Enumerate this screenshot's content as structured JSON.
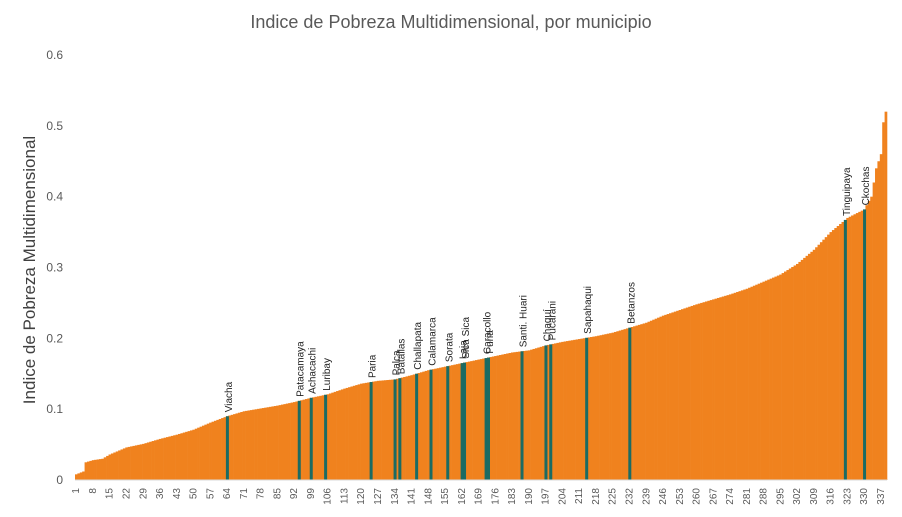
{
  "chart_data": {
    "type": "bar",
    "title": "Indice de Pobreza Multidimensional, por municipio",
    "xlabel": "",
    "ylabel": "Indice de Pobreza Multidimensional",
    "ylim": [
      0,
      0.6
    ],
    "yticks": [
      "0",
      "0.1",
      "0.2",
      "0.3",
      "0.4",
      "0.5",
      "0.6"
    ],
    "n_bars": 339,
    "x_tick_labels": [
      "1",
      "8",
      "15",
      "22",
      "29",
      "36",
      "43",
      "50",
      "57",
      "64",
      "71",
      "78",
      "85",
      "92",
      "99",
      "106",
      "113",
      "120",
      "127",
      "134",
      "141",
      "148",
      "155",
      "162",
      "169",
      "176",
      "183",
      "190",
      "197",
      "204",
      "211",
      "218",
      "225",
      "232",
      "239",
      "246",
      "253",
      "260",
      "267",
      "274",
      "281",
      "288",
      "295",
      "302",
      "309",
      "316",
      "323",
      "330",
      "337"
    ],
    "grid": false,
    "colors": {
      "bar": "#f0821e",
      "highlight": "#1b6b63"
    },
    "profile": [
      [
        1,
        0.008
      ],
      [
        4,
        0.012
      ],
      [
        5,
        0.025
      ],
      [
        8,
        0.028
      ],
      [
        12,
        0.03
      ],
      [
        15,
        0.036
      ],
      [
        22,
        0.046
      ],
      [
        29,
        0.051
      ],
      [
        36,
        0.058
      ],
      [
        43,
        0.064
      ],
      [
        50,
        0.071
      ],
      [
        57,
        0.081
      ],
      [
        64,
        0.09
      ],
      [
        71,
        0.097
      ],
      [
        78,
        0.101
      ],
      [
        85,
        0.105
      ],
      [
        92,
        0.11
      ],
      [
        99,
        0.116
      ],
      [
        106,
        0.121
      ],
      [
        113,
        0.129
      ],
      [
        120,
        0.136
      ],
      [
        127,
        0.14
      ],
      [
        134,
        0.142
      ],
      [
        141,
        0.148
      ],
      [
        148,
        0.155
      ],
      [
        155,
        0.16
      ],
      [
        162,
        0.165
      ],
      [
        169,
        0.17
      ],
      [
        176,
        0.175
      ],
      [
        183,
        0.18
      ],
      [
        190,
        0.183
      ],
      [
        197,
        0.19
      ],
      [
        204,
        0.195
      ],
      [
        211,
        0.199
      ],
      [
        218,
        0.203
      ],
      [
        225,
        0.208
      ],
      [
        232,
        0.215
      ],
      [
        239,
        0.222
      ],
      [
        246,
        0.232
      ],
      [
        253,
        0.24
      ],
      [
        260,
        0.248
      ],
      [
        267,
        0.255
      ],
      [
        274,
        0.262
      ],
      [
        281,
        0.27
      ],
      [
        288,
        0.28
      ],
      [
        295,
        0.29
      ],
      [
        302,
        0.305
      ],
      [
        309,
        0.325
      ],
      [
        316,
        0.35
      ],
      [
        323,
        0.37
      ],
      [
        330,
        0.382
      ],
      [
        333,
        0.4
      ],
      [
        335,
        0.44
      ],
      [
        337,
        0.46
      ],
      [
        338,
        0.505
      ],
      [
        339,
        0.52
      ]
    ],
    "annotations": [
      {
        "label": "Viacha",
        "x": 64
      },
      {
        "label": "Patacamaya",
        "x": 94
      },
      {
        "label": "Achacachi",
        "x": 99
      },
      {
        "label": "Luribay",
        "x": 105
      },
      {
        "label": "Paria",
        "x": 124
      },
      {
        "label": "Palca",
        "x": 134
      },
      {
        "label": "Batallas",
        "x": 136
      },
      {
        "label": "Challapata",
        "x": 143
      },
      {
        "label": "Calamarca",
        "x": 149
      },
      {
        "label": "Sorata",
        "x": 156
      },
      {
        "label": "Laja",
        "x": 162
      },
      {
        "label": "Sica Sica",
        "x": 163
      },
      {
        "label": "Caracollo",
        "x": 172
      },
      {
        "label": "Puna",
        "x": 173
      },
      {
        "label": "Santi. Huari",
        "x": 187
      },
      {
        "label": "Chaquí",
        "x": 197
      },
      {
        "label": "Pucarani",
        "x": 199
      },
      {
        "label": "Sapahaqui",
        "x": 214
      },
      {
        "label": "Betanzos",
        "x": 232
      },
      {
        "label": "Tinguipaya",
        "x": 322
      },
      {
        "label": "Ckochas",
        "x": 330
      }
    ]
  }
}
